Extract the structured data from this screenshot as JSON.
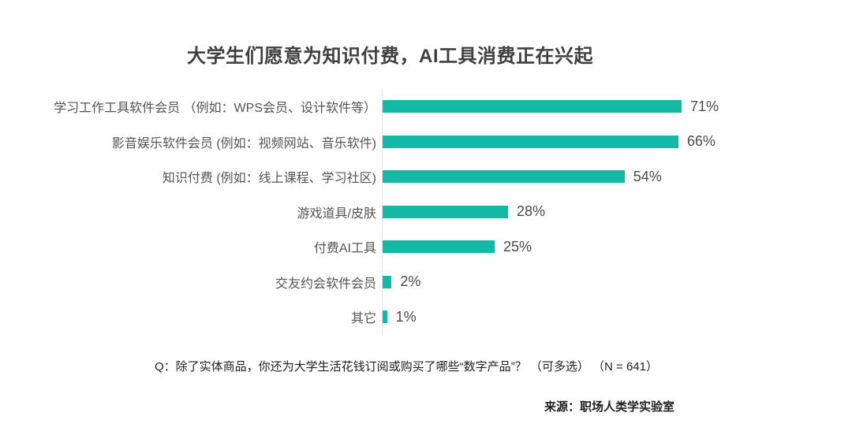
{
  "title": "大学生们愿意为知识付费，AI工具消费正在兴起",
  "chart_data": {
    "type": "bar",
    "orientation": "horizontal",
    "title": "大学生们愿意为知识付费，AI工具消费正在兴起",
    "categories": [
      "学习工作工具软件会员 （例如：WPS会员、设计软件等）",
      "影音娱乐软件会员 (例如：视频网站、音乐软件)",
      "知识付费 (例如：线上课程、学习社区)",
      "游戏道具/皮肤",
      "付费AI工具",
      "交友约会软件会员",
      "其它"
    ],
    "values": [
      71,
      66,
      54,
      28,
      25,
      2,
      1
    ],
    "value_labels": [
      "71%",
      "66%",
      "54%",
      "28%",
      "25%",
      "2%",
      "1%"
    ],
    "xlabel": "",
    "ylabel": "",
    "xlim": [
      0,
      75
    ],
    "grid": false,
    "legend": false,
    "bar_color": "#14b8a6",
    "axis_line_color": "#e4e4e4"
  },
  "footer": {
    "question": "Q：除了实体商品，你还为大学生活花钱订阅或购买了哪些“数字产品”？ （可多选） （N = 641）",
    "source": "来源：职场人类学实验室"
  },
  "colors": {
    "background": "#ffffff",
    "title_text": "#3f3f3f",
    "label_text": "#545454",
    "value_text": "#4a4a4a",
    "bar": "#14b8a6",
    "axis_line": "#e4e4e4"
  }
}
